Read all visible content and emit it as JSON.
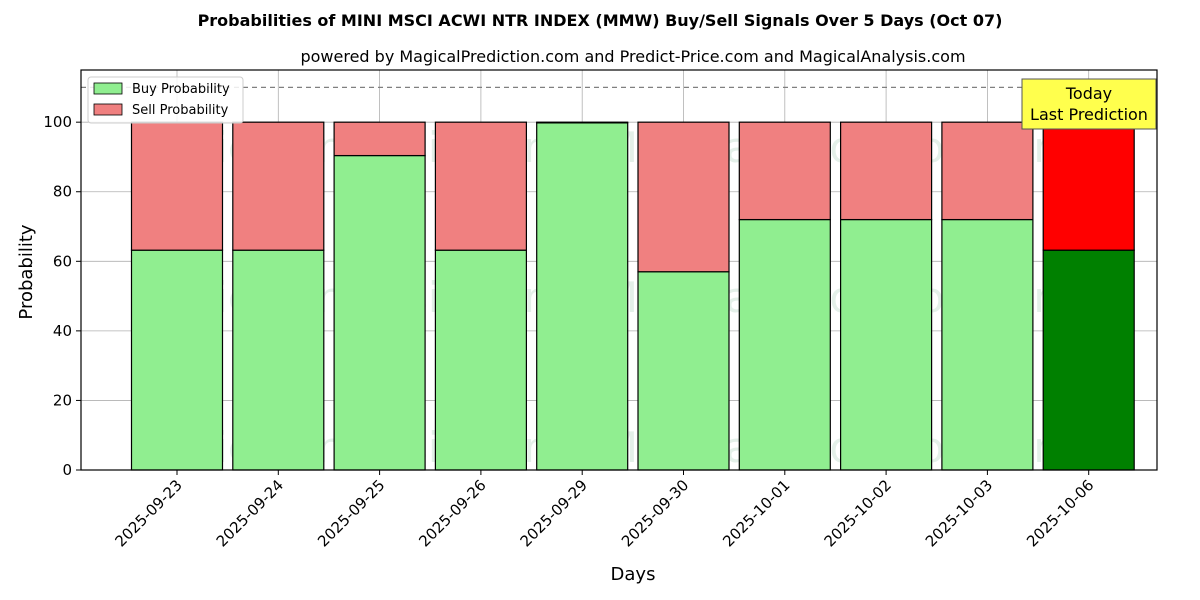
{
  "chart_data": {
    "type": "bar",
    "stacked": true,
    "title": "Probabilities of MINI MSCI ACWI NTR INDEX (MMW) Buy/Sell Signals Over 5 Days (Oct 07)",
    "subtitle": "powered by MagicalPrediction.com and Predict-Price.com and MagicalAnalysis.com",
    "xlabel": "Days",
    "ylabel": "Probability",
    "categories": [
      "2025-09-23",
      "2025-09-24",
      "2025-09-25",
      "2025-09-26",
      "2025-09-29",
      "2025-09-30",
      "2025-10-01",
      "2025-10-02",
      "2025-10-03",
      "2025-10-06"
    ],
    "series": [
      {
        "name": "Buy Probability",
        "values": [
          63.2,
          63.2,
          90.4,
          63.2,
          99.8,
          57.0,
          72.0,
          72.0,
          72.0,
          63.2
        ],
        "color": "#90ee90",
        "highlight_color": "#008000"
      },
      {
        "name": "Sell Probability",
        "values": [
          36.8,
          36.8,
          9.6,
          36.8,
          0.2,
          43.0,
          28.0,
          28.0,
          28.0,
          36.8
        ],
        "color": "#f08080",
        "highlight_color": "#ff0000"
      }
    ],
    "highlight_index": 9,
    "ylim": [
      0,
      115
    ],
    "yticks": [
      0,
      20,
      40,
      60,
      80,
      100
    ],
    "reference_line": 110,
    "grid": true,
    "legend_position": "top-left",
    "annotation": {
      "line1": "Today",
      "line2": "Last Prediction",
      "box_color": "#ffff4d"
    },
    "watermarks": [
      "MagicalAnalysis.com",
      "MagicalPrediction.com"
    ]
  }
}
